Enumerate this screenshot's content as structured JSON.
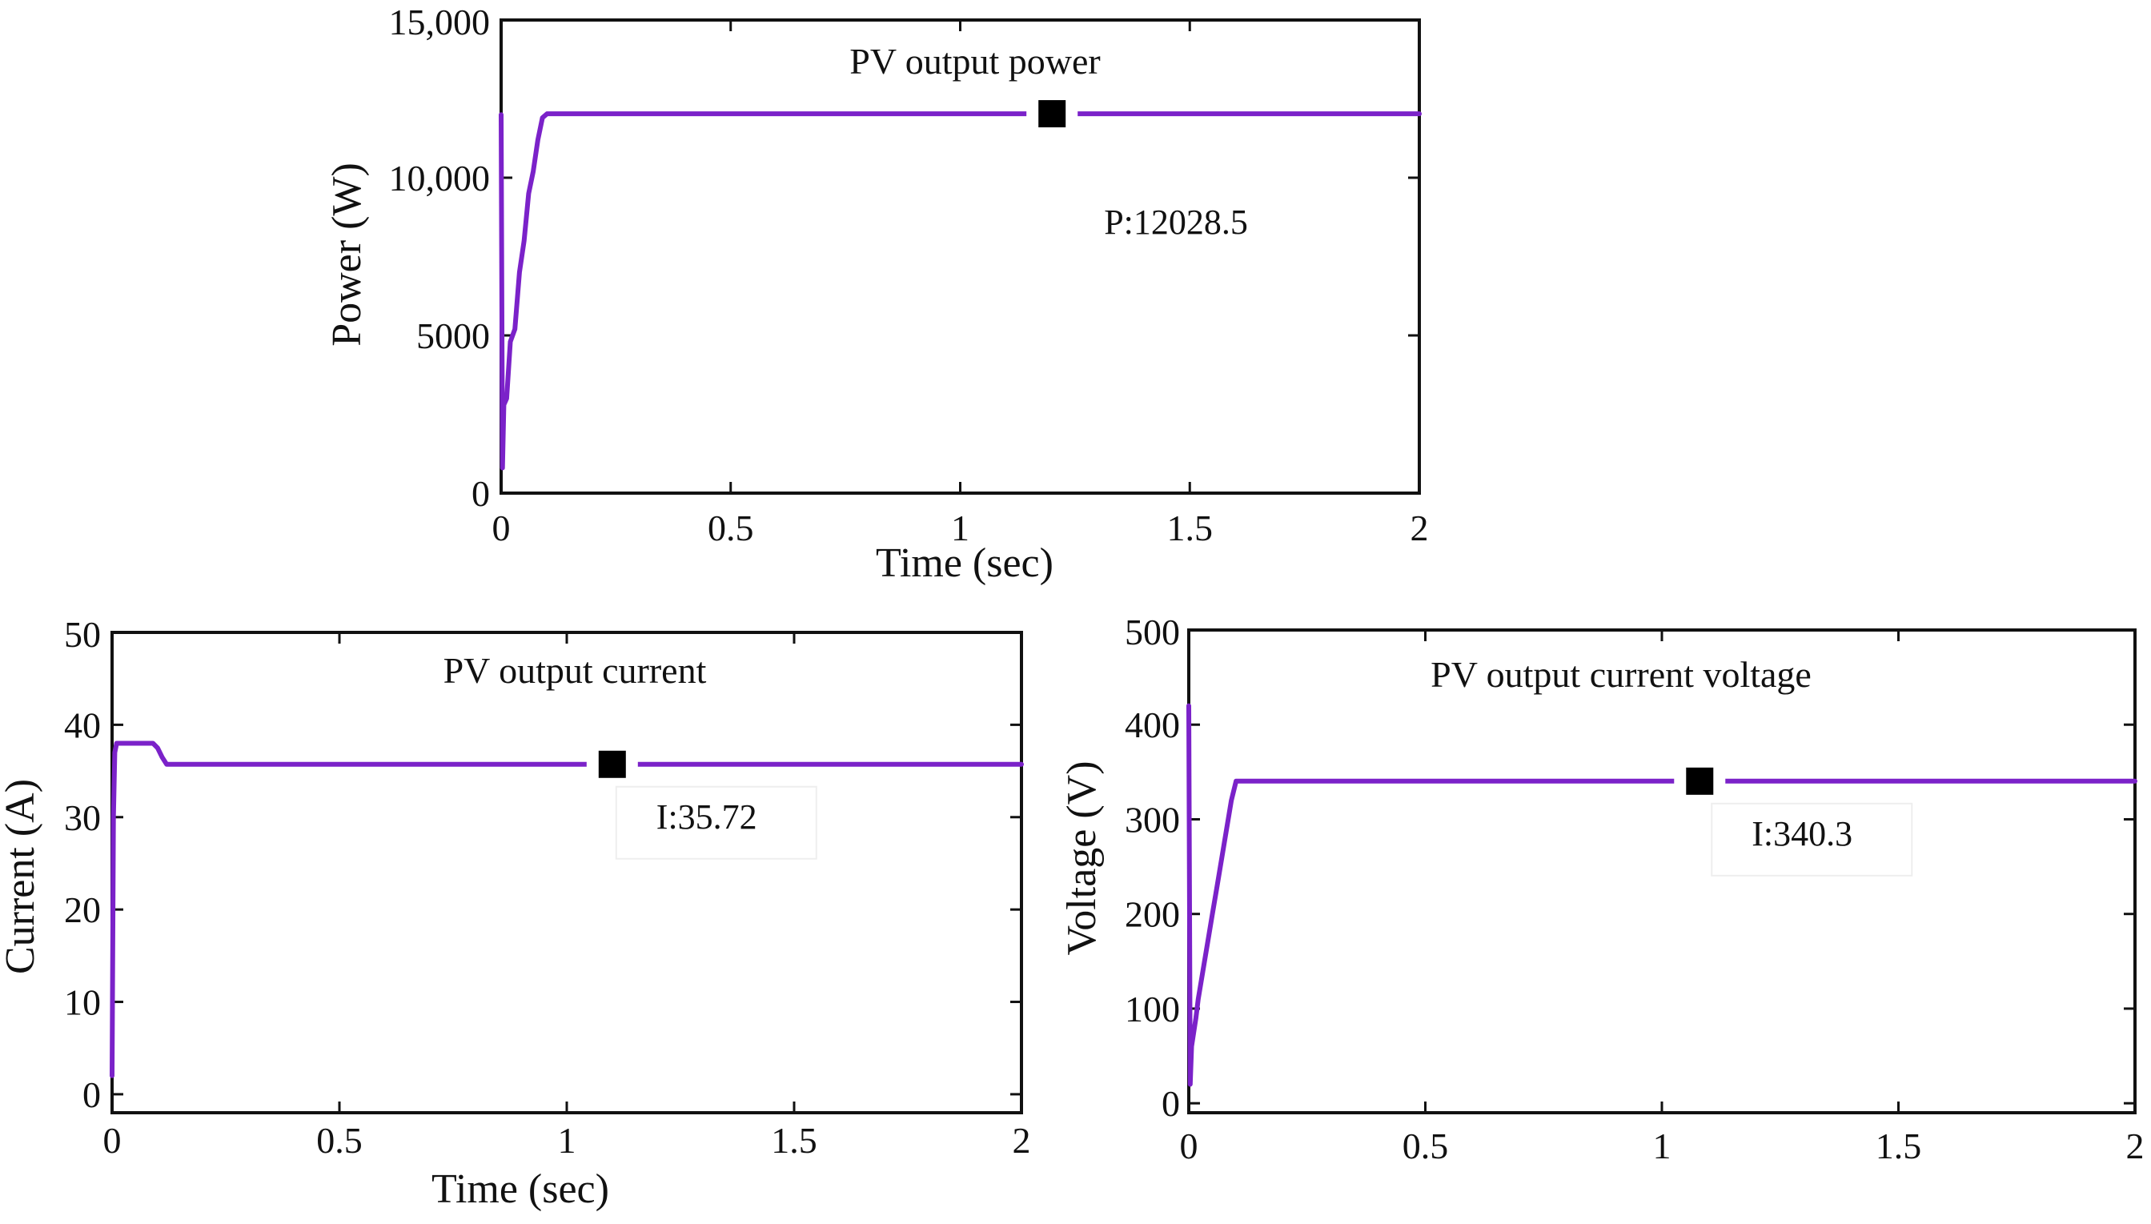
{
  "colors": {
    "line": "#7B22C9",
    "frame": "#111111",
    "marker": "#000000",
    "background": "#ffffff"
  },
  "chart_data": [
    {
      "id": "power",
      "type": "line",
      "title": "PV output power",
      "xlabel": "Time (sec)",
      "ylabel": "Power (W)",
      "xlim": [
        0,
        2
      ],
      "ylim": [
        0,
        15000
      ],
      "xticks": [
        0,
        0.5,
        1,
        1.5,
        2
      ],
      "xtick_labels": [
        "0",
        "0.5",
        "1",
        "1.5",
        "2"
      ],
      "yticks": [
        0,
        5000,
        10000,
        15000
      ],
      "ytick_labels": [
        "0",
        "5000",
        "10,000",
        "15,000"
      ],
      "series": [
        {
          "name": "PV output power",
          "x": [
            0,
            0.003,
            0.006,
            0.012,
            0.02,
            0.03,
            0.04,
            0.05,
            0.06,
            0.07,
            0.08,
            0.09,
            0.1,
            2.0
          ],
          "y": [
            12000,
            800,
            2800,
            3000,
            4800,
            5200,
            7000,
            8000,
            9500,
            10200,
            11200,
            11900,
            12028.5,
            12028.5
          ]
        }
      ],
      "marker": {
        "x": 1.2,
        "y": 12028.5,
        "label": "P:12028.5"
      }
    },
    {
      "id": "current",
      "type": "line",
      "title": "PV output current",
      "xlabel": "Time (sec)",
      "ylabel": "Current (A)",
      "xlim": [
        0,
        2
      ],
      "ylim": [
        -2,
        50
      ],
      "xticks": [
        0,
        0.5,
        1,
        1.5,
        2
      ],
      "xtick_labels": [
        "0",
        "0.5",
        "1",
        "1.5",
        "2"
      ],
      "yticks": [
        0,
        10,
        20,
        30,
        40,
        50
      ],
      "ytick_labels": [
        "0",
        "10",
        "20",
        "30",
        "40",
        "50"
      ],
      "series": [
        {
          "name": "PV output current",
          "x": [
            0,
            0.003,
            0.006,
            0.01,
            0.09,
            0.1,
            0.11,
            0.12,
            2.0
          ],
          "y": [
            2,
            30,
            37,
            38,
            38,
            37.5,
            36.5,
            35.72,
            35.72
          ]
        }
      ],
      "marker": {
        "x": 1.1,
        "y": 35.72,
        "label": "I:35.72"
      }
    },
    {
      "id": "voltage",
      "type": "line",
      "title": "PV output current voltage",
      "xlabel": "",
      "ylabel": "Voltage (V)",
      "xlim": [
        0,
        2
      ],
      "ylim": [
        -10,
        500
      ],
      "xticks": [
        0,
        0.5,
        1,
        1.5,
        2
      ],
      "xtick_labels": [
        "0",
        "0.5",
        "1",
        "1.5",
        "2"
      ],
      "yticks": [
        0,
        100,
        200,
        300,
        400,
        500
      ],
      "ytick_labels": [
        "0",
        "100",
        "200",
        "300",
        "400",
        "500"
      ],
      "series": [
        {
          "name": "PV output voltage",
          "x": [
            0,
            0.003,
            0.006,
            0.015,
            0.02,
            0.03,
            0.04,
            0.05,
            0.06,
            0.07,
            0.08,
            0.09,
            0.1,
            2.0
          ],
          "y": [
            420,
            20,
            60,
            90,
            110,
            140,
            170,
            200,
            230,
            260,
            290,
            320,
            340.3,
            340.3
          ]
        }
      ],
      "marker": {
        "x": 1.08,
        "y": 340.3,
        "label": "I:340.3"
      }
    }
  ]
}
